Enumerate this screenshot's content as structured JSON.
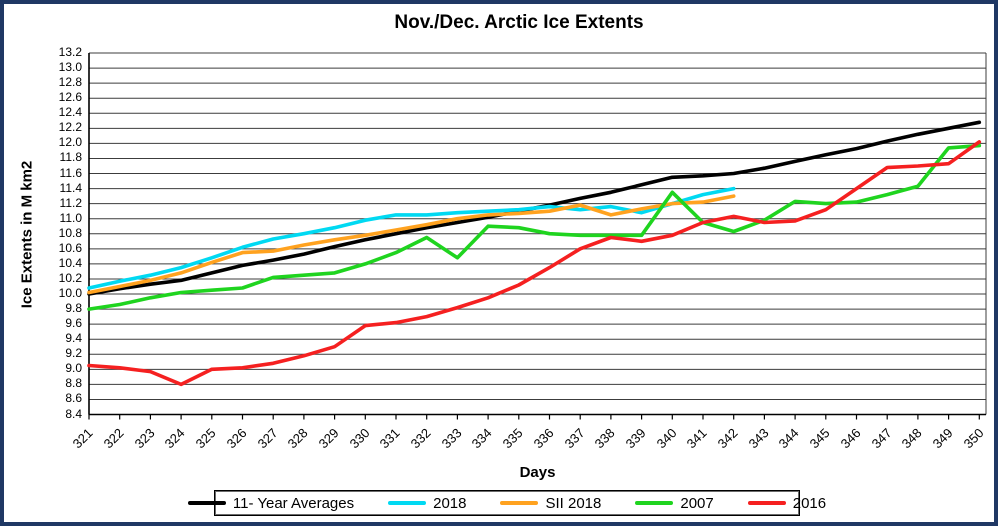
{
  "window": {
    "border_color": "#1f3864",
    "background": "#ffffff"
  },
  "chart_data": {
    "type": "line",
    "title": "Nov./Dec. Arctic Ice Extents",
    "xlabel": "Days",
    "ylabel": "Ice Extents in M km2",
    "ylim": [
      8.4,
      13.2
    ],
    "ytick_step": 0.2,
    "grid": true,
    "legend_position": "bottom",
    "x": [
      321,
      322,
      323,
      324,
      325,
      326,
      327,
      328,
      329,
      330,
      331,
      332,
      333,
      334,
      335,
      336,
      337,
      338,
      339,
      340,
      341,
      342,
      343,
      344,
      345,
      346,
      347,
      348,
      349,
      350
    ],
    "series": [
      {
        "name": "11- Year Averages",
        "color": "#000000",
        "values": [
          10.0,
          10.07,
          10.13,
          10.18,
          10.28,
          10.38,
          10.45,
          10.53,
          10.63,
          10.72,
          10.8,
          10.88,
          10.95,
          11.02,
          11.1,
          11.18,
          11.27,
          11.35,
          11.45,
          11.55,
          11.57,
          11.6,
          11.67,
          11.76,
          11.85,
          11.93,
          12.03,
          12.12,
          12.2,
          12.28
        ]
      },
      {
        "name": "2018",
        "color": "#00d9f2",
        "values": [
          10.08,
          10.17,
          10.25,
          10.35,
          10.48,
          10.62,
          10.73,
          10.8,
          10.88,
          10.98,
          11.05,
          11.05,
          11.08,
          11.1,
          11.12,
          11.16,
          11.12,
          11.16,
          11.08,
          11.2,
          11.32,
          11.4
        ]
      },
      {
        "name": "SII 2018",
        "color": "#ffa21f",
        "values": [
          10.02,
          10.1,
          10.18,
          10.28,
          10.42,
          10.55,
          10.57,
          10.65,
          10.72,
          10.78,
          10.85,
          10.92,
          11.0,
          11.05,
          11.07,
          11.1,
          11.18,
          11.05,
          11.13,
          11.2,
          11.22,
          11.3
        ]
      },
      {
        "name": "2007",
        "color": "#1fd41f",
        "values": [
          9.8,
          9.86,
          9.95,
          10.02,
          10.05,
          10.08,
          10.22,
          10.25,
          10.28,
          10.4,
          10.55,
          10.75,
          10.48,
          10.9,
          10.88,
          10.8,
          10.78,
          10.78,
          10.78,
          11.35,
          10.95,
          10.83,
          10.98,
          11.23,
          11.2,
          11.22,
          11.32,
          11.43,
          11.94,
          11.97
        ]
      },
      {
        "name": "2016",
        "color": "#f52020",
        "values": [
          9.05,
          9.02,
          8.97,
          8.8,
          9.0,
          9.02,
          9.08,
          9.18,
          9.3,
          9.58,
          9.62,
          9.7,
          9.82,
          9.95,
          10.12,
          10.35,
          10.6,
          10.75,
          10.7,
          10.78,
          10.95,
          11.03,
          10.95,
          10.97,
          11.12,
          11.4,
          11.68,
          11.7,
          11.73,
          12.02
        ]
      }
    ]
  }
}
